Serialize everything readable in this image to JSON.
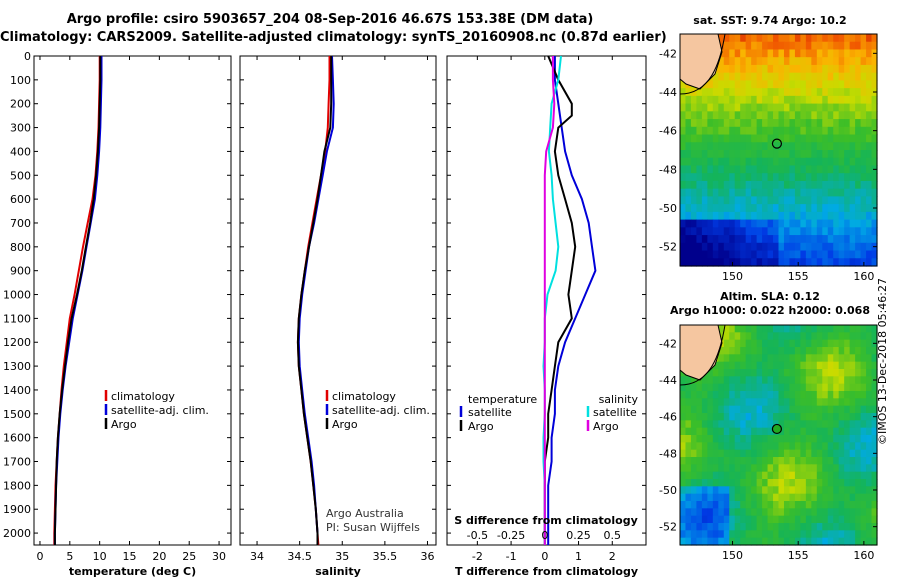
{
  "header": {
    "line1": "Argo profile: csiro 5903657_204 08-Sep-2016 46.67S 153.38E (DM data)",
    "line2": "Climatology: CARS2009. Satellite-adjusted climatology: synTS_20160908.nc (0.87d earlier)"
  },
  "colors": {
    "climatology": "#e00000",
    "satellite": "#0000d8",
    "argo": "#000000",
    "sat_salinity": "#00e0e0",
    "clim_salinity": "#e000e0"
  },
  "chart_data": [
    {
      "type": "line",
      "name": "temperature",
      "xlabel": "temperature (deg C)",
      "ylabel": "",
      "xlim": [
        -1,
        32
      ],
      "ylim": [
        2050,
        0
      ],
      "xticks": [
        0,
        5,
        10,
        15,
        20,
        25,
        30
      ],
      "yticks": [
        0,
        100,
        200,
        300,
        400,
        500,
        600,
        700,
        800,
        900,
        1000,
        1100,
        1200,
        1300,
        1400,
        1500,
        1600,
        1700,
        1800,
        1900,
        2000
      ],
      "legend": [
        "climatology",
        "satellite-adj. clim.",
        "Argo"
      ],
      "series": [
        {
          "name": "climatology",
          "color": "#e00000",
          "points": [
            [
              10.0,
              0
            ],
            [
              10.0,
              100
            ],
            [
              9.9,
              200
            ],
            [
              9.8,
              300
            ],
            [
              9.6,
              400
            ],
            [
              9.3,
              500
            ],
            [
              8.8,
              600
            ],
            [
              8.0,
              700
            ],
            [
              7.2,
              800
            ],
            [
              6.5,
              900
            ],
            [
              5.8,
              1000
            ],
            [
              5.0,
              1100
            ],
            [
              4.5,
              1200
            ],
            [
              4.0,
              1300
            ],
            [
              3.6,
              1400
            ],
            [
              3.3,
              1500
            ],
            [
              3.0,
              1600
            ],
            [
              2.8,
              1700
            ],
            [
              2.6,
              1800
            ],
            [
              2.5,
              1900
            ],
            [
              2.4,
              2000
            ],
            [
              2.4,
              2050
            ]
          ]
        },
        {
          "name": "satellite-adj. clim.",
          "color": "#0000d8",
          "points": [
            [
              10.3,
              0
            ],
            [
              10.3,
              100
            ],
            [
              10.2,
              200
            ],
            [
              10.1,
              300
            ],
            [
              9.9,
              400
            ],
            [
              9.6,
              500
            ],
            [
              9.2,
              600
            ],
            [
              8.5,
              700
            ],
            [
              7.8,
              800
            ],
            [
              7.1,
              900
            ],
            [
              6.3,
              1000
            ],
            [
              5.5,
              1100
            ],
            [
              4.9,
              1200
            ],
            [
              4.3,
              1300
            ],
            [
              3.8,
              1400
            ],
            [
              3.4,
              1500
            ],
            [
              3.1,
              1600
            ],
            [
              2.9,
              1700
            ],
            [
              2.7,
              1800
            ],
            [
              2.6,
              1900
            ],
            [
              2.5,
              2000
            ],
            [
              2.5,
              2050
            ]
          ]
        },
        {
          "name": "Argo",
          "color": "#000000",
          "points": [
            [
              10.1,
              0
            ],
            [
              10.1,
              100
            ],
            [
              10.0,
              200
            ],
            [
              9.9,
              300
            ],
            [
              9.7,
              400
            ],
            [
              9.4,
              500
            ],
            [
              9.0,
              600
            ],
            [
              8.4,
              700
            ],
            [
              7.7,
              800
            ],
            [
              7.0,
              900
            ],
            [
              6.2,
              1000
            ],
            [
              5.3,
              1100
            ],
            [
              4.7,
              1200
            ],
            [
              4.2,
              1300
            ],
            [
              3.7,
              1400
            ],
            [
              3.3,
              1500
            ],
            [
              3.0,
              1600
            ],
            [
              2.8,
              1700
            ],
            [
              2.7,
              1800
            ],
            [
              2.6,
              1900
            ],
            [
              2.5,
              2000
            ],
            [
              2.5,
              2050
            ]
          ]
        }
      ]
    },
    {
      "type": "line",
      "name": "salinity",
      "xlabel": "salinity",
      "ylabel": "",
      "xlim": [
        33.8,
        36.1
      ],
      "ylim": [
        2050,
        0
      ],
      "xticks": [
        34,
        34.5,
        35,
        35.5,
        36
      ],
      "legend": [
        "climatology",
        "satellite-adj. clim.",
        "Argo"
      ],
      "credit_line1": "Argo Australia",
      "credit_line2": "PI: Susan Wijffels",
      "series": [
        {
          "name": "climatology",
          "color": "#e00000",
          "points": [
            [
              34.85,
              0
            ],
            [
              34.85,
              100
            ],
            [
              34.84,
              200
            ],
            [
              34.83,
              300
            ],
            [
              34.8,
              400
            ],
            [
              34.75,
              500
            ],
            [
              34.7,
              600
            ],
            [
              34.65,
              700
            ],
            [
              34.6,
              800
            ],
            [
              34.56,
              900
            ],
            [
              34.52,
              1000
            ],
            [
              34.49,
              1100
            ],
            [
              34.48,
              1200
            ],
            [
              34.49,
              1300
            ],
            [
              34.52,
              1400
            ],
            [
              34.55,
              1500
            ],
            [
              34.59,
              1600
            ],
            [
              34.63,
              1700
            ],
            [
              34.66,
              1800
            ],
            [
              34.69,
              1900
            ],
            [
              34.71,
              2000
            ],
            [
              34.72,
              2050
            ]
          ]
        },
        {
          "name": "satellite-adj. clim.",
          "color": "#0000d8",
          "points": [
            [
              34.88,
              0
            ],
            [
              34.89,
              100
            ],
            [
              34.9,
              200
            ],
            [
              34.89,
              300
            ],
            [
              34.82,
              400
            ],
            [
              34.77,
              500
            ],
            [
              34.72,
              600
            ],
            [
              34.67,
              700
            ],
            [
              34.61,
              800
            ],
            [
              34.57,
              900
            ],
            [
              34.53,
              1000
            ],
            [
              34.5,
              1100
            ],
            [
              34.49,
              1200
            ],
            [
              34.5,
              1300
            ],
            [
              34.53,
              1400
            ],
            [
              34.56,
              1500
            ],
            [
              34.6,
              1600
            ],
            [
              34.64,
              1700
            ],
            [
              34.67,
              1800
            ],
            [
              34.69,
              1900
            ],
            [
              34.71,
              2000
            ],
            [
              34.71,
              2050
            ]
          ]
        },
        {
          "name": "Argo",
          "color": "#000000",
          "points": [
            [
              34.87,
              0
            ],
            [
              34.87,
              100
            ],
            [
              34.87,
              200
            ],
            [
              34.86,
              300
            ],
            [
              34.79,
              400
            ],
            [
              34.75,
              500
            ],
            [
              34.71,
              600
            ],
            [
              34.66,
              700
            ],
            [
              34.61,
              800
            ],
            [
              34.56,
              900
            ],
            [
              34.52,
              1000
            ],
            [
              34.49,
              1100
            ],
            [
              34.48,
              1200
            ],
            [
              34.49,
              1300
            ],
            [
              34.52,
              1400
            ],
            [
              34.55,
              1500
            ],
            [
              34.59,
              1600
            ],
            [
              34.63,
              1700
            ],
            [
              34.66,
              1800
            ],
            [
              34.69,
              1900
            ],
            [
              34.71,
              2000
            ],
            [
              34.71,
              2050
            ]
          ]
        }
      ]
    },
    {
      "type": "line",
      "name": "difference",
      "xlabel": "T difference from climatology",
      "xlabel_top": "S difference from climatology",
      "xlim": [
        -2.9,
        3.0
      ],
      "ylim": [
        2050,
        0
      ],
      "xticks": [
        -2,
        -1,
        0,
        1,
        2
      ],
      "xticks_top": [
        "-0.5",
        "-0.25",
        "0",
        "0.25",
        "0.5"
      ],
      "legend_left": [
        "temperature",
        "satellite",
        "Argo"
      ],
      "legend_right": [
        "salinity",
        "satellite",
        "Argo"
      ],
      "series": [
        {
          "name": "temperature satellite",
          "color": "#0000d8",
          "points": [
            [
              0.3,
              0
            ],
            [
              0.3,
              100
            ],
            [
              0.4,
              200
            ],
            [
              0.5,
              300
            ],
            [
              0.6,
              400
            ],
            [
              0.8,
              500
            ],
            [
              1.1,
              600
            ],
            [
              1.3,
              700
            ],
            [
              1.4,
              800
            ],
            [
              1.5,
              900
            ],
            [
              1.2,
              1000
            ],
            [
              0.9,
              1100
            ],
            [
              0.6,
              1200
            ],
            [
              0.4,
              1300
            ],
            [
              0.3,
              1400
            ],
            [
              0.3,
              1500
            ],
            [
              0.2,
              1600
            ],
            [
              0.2,
              1700
            ],
            [
              0.1,
              1800
            ],
            [
              0.1,
              1900
            ],
            [
              0.1,
              2000
            ],
            [
              0.1,
              2050
            ]
          ]
        },
        {
          "name": "temperature Argo",
          "color": "#000000",
          "points": [
            [
              0.1,
              0
            ],
            [
              0.4,
              100
            ],
            [
              0.8,
              200
            ],
            [
              0.8,
              250
            ],
            [
              0.4,
              300
            ],
            [
              0.3,
              400
            ],
            [
              0.4,
              500
            ],
            [
              0.6,
              600
            ],
            [
              0.8,
              700
            ],
            [
              0.9,
              800
            ],
            [
              0.8,
              900
            ],
            [
              0.7,
              1000
            ],
            [
              0.8,
              1100
            ],
            [
              0.4,
              1200
            ],
            [
              0.3,
              1300
            ],
            [
              0.2,
              1400
            ],
            [
              0.1,
              1500
            ],
            [
              0.1,
              1600
            ],
            [
              0.0,
              1700
            ],
            [
              0.0,
              1800
            ],
            [
              0.0,
              1900
            ],
            [
              0.0,
              2000
            ],
            [
              0.0,
              2050
            ]
          ]
        },
        {
          "name": "salinity satellite",
          "color": "#00e0e0",
          "points": [
            [
              0.12,
              0
            ],
            [
              0.1,
              100
            ],
            [
              0.05,
              200
            ],
            [
              0.04,
              300
            ],
            [
              0.03,
              400
            ],
            [
              0.05,
              500
            ],
            [
              0.06,
              600
            ],
            [
              0.08,
              700
            ],
            [
              0.1,
              800
            ],
            [
              0.08,
              900
            ],
            [
              0.02,
              1000
            ],
            [
              0.0,
              1100
            ],
            [
              0.0,
              1200
            ],
            [
              -0.01,
              1300
            ],
            [
              0.0,
              1400
            ],
            [
              0.0,
              1500
            ],
            [
              -0.01,
              1600
            ],
            [
              -0.01,
              1700
            ],
            [
              0.0,
              1800
            ],
            [
              0.0,
              1900
            ],
            [
              0.0,
              2000
            ],
            [
              0.0,
              2050
            ]
          ]
        },
        {
          "name": "salinity Argo",
          "color": "#e000e0",
          "points": [
            [
              0.06,
              0
            ],
            [
              0.06,
              100
            ],
            [
              0.07,
              200
            ],
            [
              0.06,
              300
            ],
            [
              0.01,
              400
            ],
            [
              0.0,
              500
            ],
            [
              0.0,
              600
            ],
            [
              0.0,
              700
            ],
            [
              0.0,
              800
            ],
            [
              0.0,
              900
            ],
            [
              0.0,
              1000
            ],
            [
              0.0,
              1100
            ],
            [
              0.0,
              1200
            ],
            [
              0.0,
              1300
            ],
            [
              0.0,
              1400
            ],
            [
              0.0,
              1500
            ],
            [
              0.0,
              1600
            ],
            [
              0.0,
              1700
            ],
            [
              0.0,
              1800
            ],
            [
              0.0,
              1900
            ],
            [
              0.0,
              2000
            ],
            [
              0.0,
              2050
            ]
          ]
        }
      ]
    },
    {
      "type": "heatmap",
      "name": "sst-map",
      "title": "sat. SST: 9.74 Argo: 10.2",
      "xlim": [
        146,
        161
      ],
      "ylim": [
        -53,
        -41
      ],
      "xticks": [
        150,
        155,
        160
      ],
      "yticks": [
        -42,
        -44,
        -46,
        -48,
        -50,
        -52
      ],
      "profile_lon": 153.38,
      "profile_lat": -46.67
    },
    {
      "type": "heatmap",
      "name": "sla-map",
      "title_line1": "Altim. SLA: 0.12",
      "title_line2": "Argo h1000: 0.022 h2000: 0.068",
      "xlim": [
        146,
        161
      ],
      "ylim": [
        -53,
        -41
      ],
      "xticks": [
        150,
        155,
        160
      ],
      "yticks": [
        -42,
        -44,
        -46,
        -48,
        -50,
        -52
      ],
      "profile_lon": 153.38,
      "profile_lat": -46.67
    }
  ],
  "stamp": "©IMOS 13-Dec-2018 05:46:27"
}
